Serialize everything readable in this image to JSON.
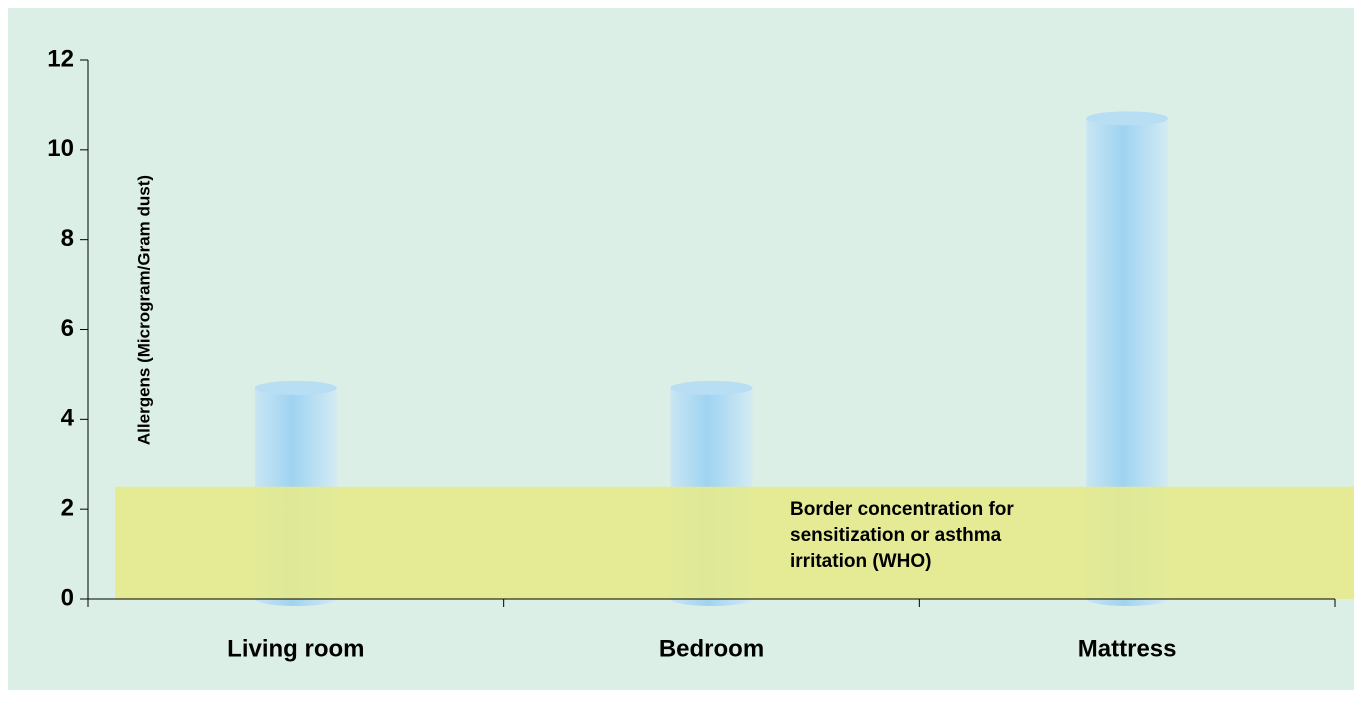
{
  "chart_data": {
    "type": "bar",
    "y_label": "Allergens (Microgram/Gram dust)",
    "categories": [
      "Living room",
      "Bedroom",
      "Mattress"
    ],
    "values": [
      4.7,
      4.7,
      10.7
    ],
    "color": "#9fd3f2",
    "ylim": [
      0,
      12
    ],
    "yticks": [
      0,
      2,
      4,
      6,
      8,
      10,
      12
    ],
    "band": {
      "from": 0,
      "to": 2.5,
      "color": "#e6ea8a",
      "label_lines": [
        "Border concentration for",
        "sensitization or asthma",
        "irritation (WHO)"
      ]
    }
  }
}
